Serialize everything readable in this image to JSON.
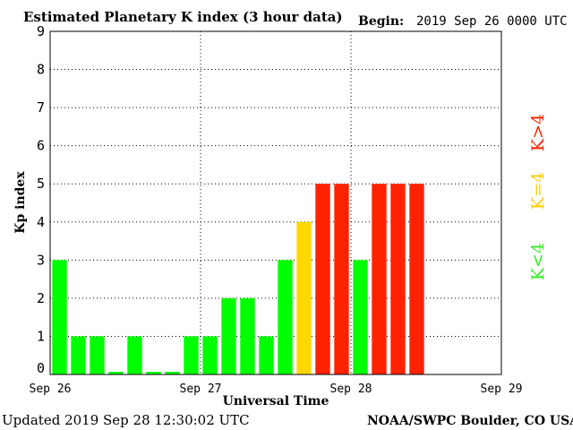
{
  "chart_data": {
    "type": "bar",
    "title": "Estimated Planetary K index (3 hour data)",
    "begin_label": "Begin:",
    "begin_value": "2019 Sep 26 0000 UTC",
    "xlabel": "Universal Time",
    "ylabel": "Kp index",
    "ylim": [
      0,
      9
    ],
    "yticks": [
      "0",
      "1",
      "2",
      "3",
      "4",
      "5",
      "6",
      "7",
      "8",
      "9"
    ],
    "xticks": [
      "Sep 26",
      "Sep 27",
      "Sep 28",
      "Sep 29"
    ],
    "grid": true,
    "bar_interval_hours": 3,
    "values": [
      3,
      1,
      1,
      0.07,
      1,
      0.07,
      0.07,
      1,
      1,
      2,
      2,
      1,
      3,
      4,
      5,
      5,
      3,
      5,
      5,
      5
    ],
    "colors": {
      "low": "#00ff00",
      "equal": "#ffd700",
      "high": "#ff2200"
    },
    "legend": [
      {
        "label": "K<4",
        "color": "#33ee22"
      },
      {
        "label": "K=4",
        "color": "#ffcc00"
      },
      {
        "label": "K>4",
        "color": "#ff2200"
      }
    ]
  },
  "footer": {
    "updated": "Updated 2019 Sep 28 12:30:02 UTC",
    "source": "NOAA/SWPC Boulder, CO USA"
  }
}
